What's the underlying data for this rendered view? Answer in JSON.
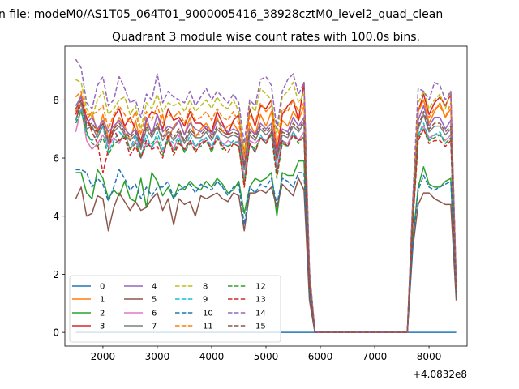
{
  "chart_data": {
    "type": "line",
    "suptitle": "n file: modeM0/AS1T05_064T01_9000005416_38928cztM0_level2_quad_clean",
    "title": "Quadrant 3 module wise count rates with 100.0s bins.",
    "xlabel": "",
    "ylabel": "",
    "offset_label": "+4.0832e8",
    "xlim": [
      1300,
      8700
    ],
    "ylim": [
      -0.47,
      9.85
    ],
    "xticks": [
      "2000",
      "3000",
      "4000",
      "5000",
      "6000",
      "7000",
      "8000"
    ],
    "yticks": [
      "0",
      "2",
      "4",
      "6",
      "8"
    ],
    "grid": false,
    "legend_placement": "lower-left",
    "x": [
      1500,
      1600,
      1700,
      1800,
      1900,
      2000,
      2100,
      2200,
      2300,
      2400,
      2500,
      2600,
      2700,
      2800,
      2900,
      3000,
      3100,
      3200,
      3300,
      3400,
      3500,
      3600,
      3700,
      3800,
      3900,
      4000,
      4100,
      4200,
      4300,
      4400,
      4500,
      4600,
      4700,
      4800,
      4900,
      5000,
      5100,
      5200,
      5300,
      5400,
      5500,
      5600,
      5700,
      5800,
      5900,
      7600,
      7700,
      7800,
      7900,
      8000,
      8100,
      8200,
      8300,
      8400,
      8500
    ],
    "series": [
      {
        "name": "0",
        "color": "#1f77b4",
        "dash": "solid",
        "values": [
          0,
          0,
          0,
          0,
          0,
          0,
          0,
          0,
          0,
          0,
          0,
          0,
          0,
          0,
          0,
          0,
          0,
          0,
          0,
          0,
          0,
          0,
          0,
          0,
          0,
          0,
          0,
          0,
          0,
          0,
          0,
          0,
          0,
          0,
          0,
          0,
          0,
          0,
          0,
          0,
          0,
          0,
          0,
          0,
          0,
          0,
          0,
          0,
          0,
          0,
          0,
          0,
          0,
          0,
          0
        ]
      },
      {
        "name": "1",
        "color": "#ff7f0e",
        "dash": "solid",
        "values": [
          7.6,
          8.2,
          7.3,
          7.6,
          6.8,
          7.5,
          6.7,
          7.0,
          7.4,
          7.1,
          6.6,
          7.3,
          6.5,
          7.2,
          6.9,
          7.0,
          7.5,
          6.6,
          7.1,
          7.3,
          6.8,
          7.4,
          6.7,
          7.0,
          7.2,
          6.9,
          7.4,
          6.9,
          7.1,
          7.2,
          6.9,
          5.7,
          7.2,
          6.8,
          7.5,
          7.1,
          7.6,
          6.2,
          7.3,
          7.1,
          7.6,
          7.3,
          7.8,
          1.9,
          0,
          0,
          4.2,
          7.6,
          8.0,
          7.2,
          7.6,
          7.9,
          7.4,
          7.7,
          1.6
        ]
      },
      {
        "name": "2",
        "color": "#2ca02c",
        "dash": "solid",
        "values": [
          5.5,
          5.5,
          4.8,
          4.6,
          5.6,
          5.3,
          4.6,
          4.9,
          4.7,
          5.2,
          4.6,
          4.5,
          5.3,
          4.3,
          5.5,
          5.2,
          4.7,
          5.0,
          4.6,
          5.1,
          4.9,
          5.2,
          5.0,
          4.9,
          5.2,
          5.0,
          5.3,
          5.1,
          4.8,
          4.9,
          5.2,
          4.1,
          5.0,
          5.3,
          5.2,
          5.3,
          5.5,
          4.0,
          5.5,
          5.4,
          5.4,
          5.9,
          5.9,
          1.2,
          0,
          0,
          3.2,
          5.0,
          5.7,
          5.1,
          5.0,
          5.0,
          5.2,
          5.3,
          1.3
        ]
      },
      {
        "name": "3",
        "color": "#d62728",
        "dash": "solid",
        "values": [
          7.3,
          7.9,
          7.4,
          7.0,
          6.9,
          7.2,
          6.5,
          7.4,
          7.7,
          7.1,
          7.4,
          7.0,
          6.6,
          7.3,
          7.6,
          7.5,
          7.0,
          7.7,
          7.3,
          7.4,
          7.1,
          7.6,
          7.2,
          7.2,
          7.0,
          6.9,
          7.6,
          7.2,
          6.8,
          7.3,
          7.5,
          6.1,
          7.7,
          7.1,
          7.8,
          7.7,
          8.0,
          6.2,
          7.5,
          7.8,
          8.0,
          7.3,
          8.6,
          2.1,
          0,
          0,
          4.5,
          7.6,
          8.2,
          7.5,
          7.9,
          8.1,
          7.8,
          8.2,
          1.7
        ]
      },
      {
        "name": "4",
        "color": "#9467bd",
        "dash": "solid",
        "values": [
          7.8,
          8.1,
          7.2,
          7.4,
          7.0,
          7.3,
          6.9,
          7.1,
          7.3,
          7.0,
          6.8,
          7.0,
          6.4,
          7.4,
          6.8,
          7.5,
          6.9,
          7.1,
          7.0,
          7.3,
          6.8,
          7.2,
          7.0,
          6.9,
          7.1,
          6.8,
          7.3,
          7.1,
          6.9,
          7.0,
          6.9,
          5.8,
          7.0,
          6.8,
          7.2,
          7.0,
          7.2,
          6.1,
          7.0,
          6.9,
          7.4,
          7.1,
          7.4,
          1.8,
          0,
          0,
          4.1,
          7.3,
          7.8,
          7.1,
          7.4,
          7.4,
          7.0,
          7.3,
          1.5
        ]
      },
      {
        "name": "5",
        "color": "#8c564b",
        "dash": "solid",
        "values": [
          4.6,
          5.0,
          4.0,
          4.1,
          4.7,
          4.6,
          3.5,
          4.3,
          4.8,
          4.5,
          4.2,
          4.5,
          4.2,
          4.3,
          4.6,
          4.8,
          4.2,
          4.6,
          3.7,
          4.6,
          4.4,
          4.5,
          4.0,
          4.7,
          4.6,
          4.7,
          4.8,
          4.6,
          4.5,
          4.8,
          4.7,
          3.5,
          4.8,
          4.8,
          4.9,
          4.8,
          5.0,
          4.3,
          5.1,
          4.9,
          4.7,
          5.3,
          4.9,
          1.1,
          0,
          0,
          2.9,
          4.4,
          4.8,
          4.8,
          4.6,
          4.5,
          4.4,
          4.4,
          1.1
        ]
      },
      {
        "name": "6",
        "color": "#e377c2",
        "dash": "solid",
        "values": [
          6.9,
          7.7,
          6.6,
          6.3,
          6.5,
          6.8,
          6.4,
          6.7,
          6.5,
          6.9,
          6.3,
          6.6,
          6.0,
          6.5,
          6.4,
          6.6,
          6.2,
          6.7,
          6.3,
          6.8,
          6.2,
          6.6,
          6.4,
          6.5,
          6.7,
          6.3,
          6.8,
          6.4,
          6.6,
          6.5,
          6.6,
          5.3,
          6.6,
          6.5,
          6.7,
          6.6,
          6.9,
          5.6,
          6.6,
          6.5,
          6.9,
          6.6,
          6.9,
          1.7,
          0,
          0,
          3.9,
          6.8,
          7.1,
          6.7,
          6.8,
          6.8,
          6.6,
          6.8,
          1.4
        ]
      },
      {
        "name": "7",
        "color": "#7f7f7f",
        "dash": "solid",
        "values": [
          7.5,
          7.9,
          7.0,
          7.1,
          6.7,
          7.1,
          6.5,
          6.9,
          7.1,
          6.8,
          6.6,
          6.8,
          6.3,
          7.0,
          6.7,
          7.1,
          6.6,
          6.9,
          6.6,
          6.9,
          6.5,
          6.9,
          6.7,
          6.7,
          6.9,
          6.6,
          7.0,
          6.8,
          6.7,
          6.8,
          6.7,
          5.6,
          6.8,
          6.6,
          7.0,
          6.8,
          7.0,
          5.9,
          6.8,
          6.7,
          7.1,
          6.9,
          7.2,
          1.8,
          0,
          0,
          4.0,
          7.0,
          7.5,
          6.9,
          7.1,
          7.1,
          6.8,
          7.0,
          1.5
        ]
      },
      {
        "name": "8",
        "color": "#bcbd22",
        "dash": "dashed",
        "values": [
          8.7,
          8.6,
          7.7,
          7.4,
          8.0,
          8.3,
          7.5,
          7.7,
          8.0,
          8.1,
          7.5,
          7.8,
          7.0,
          7.9,
          7.7,
          8.2,
          7.6,
          7.9,
          7.8,
          7.9,
          7.6,
          8.0,
          7.6,
          7.8,
          8.0,
          7.7,
          8.1,
          7.8,
          7.7,
          8.0,
          7.6,
          6.2,
          7.9,
          7.6,
          8.4,
          8.2,
          8.0,
          6.8,
          8.1,
          8.3,
          8.6,
          7.9,
          8.2,
          2.0,
          0,
          0,
          4.4,
          7.9,
          8.3,
          7.7,
          8.0,
          8.2,
          7.7,
          8.3,
          1.7
        ]
      },
      {
        "name": "9",
        "color": "#17becf",
        "dash": "dashed",
        "values": [
          7.3,
          7.7,
          6.8,
          6.6,
          6.8,
          7.1,
          6.2,
          6.6,
          6.9,
          6.7,
          6.3,
          6.8,
          6.0,
          6.8,
          6.3,
          6.9,
          6.3,
          6.7,
          6.5,
          6.7,
          6.2,
          6.8,
          6.4,
          6.6,
          6.7,
          6.4,
          6.8,
          6.5,
          6.4,
          6.6,
          6.5,
          5.2,
          6.5,
          6.2,
          6.8,
          6.5,
          6.9,
          5.5,
          6.6,
          6.4,
          6.9,
          6.6,
          6.7,
          1.6,
          0,
          0,
          3.8,
          6.8,
          7.2,
          6.6,
          6.8,
          6.9,
          6.5,
          6.7,
          1.4
        ]
      },
      {
        "name": "10",
        "color": "#1f77b4",
        "dash": "dashed",
        "values": [
          5.6,
          5.6,
          5.5,
          5.0,
          5.3,
          5.1,
          4.5,
          5.0,
          5.6,
          5.3,
          4.9,
          5.1,
          4.6,
          5.0,
          4.7,
          5.0,
          5.0,
          5.2,
          4.6,
          4.9,
          5.0,
          5.1,
          4.8,
          5.1,
          5.0,
          4.9,
          5.2,
          5.0,
          4.7,
          5.0,
          5.1,
          3.7,
          5.0,
          4.8,
          5.1,
          5.0,
          5.3,
          4.4,
          5.3,
          5.2,
          5.0,
          5.5,
          5.5,
          1.3,
          0,
          0,
          3.0,
          4.9,
          5.4,
          5.0,
          4.9,
          5.0,
          5.1,
          5.2,
          1.3
        ]
      },
      {
        "name": "11",
        "color": "#ff7f0e",
        "dash": "dashed",
        "values": [
          8.1,
          8.3,
          7.5,
          7.5,
          7.6,
          7.8,
          7.0,
          7.5,
          7.8,
          7.5,
          7.2,
          7.6,
          6.8,
          7.6,
          7.3,
          7.8,
          7.2,
          7.5,
          7.4,
          7.6,
          7.2,
          7.7,
          7.3,
          7.4,
          7.6,
          7.3,
          7.7,
          7.4,
          7.3,
          7.6,
          7.2,
          6.0,
          7.5,
          7.2,
          7.9,
          7.6,
          7.8,
          6.4,
          7.7,
          7.6,
          8.0,
          7.6,
          7.9,
          1.9,
          0,
          0,
          4.3,
          7.6,
          8.0,
          7.4,
          7.7,
          7.8,
          7.4,
          7.9,
          1.6
        ]
      },
      {
        "name": "12",
        "color": "#2ca02c",
        "dash": "dashed",
        "values": [
          7.2,
          7.6,
          6.9,
          6.5,
          6.4,
          6.7,
          6.1,
          6.5,
          6.6,
          6.8,
          6.3,
          6.5,
          6.1,
          6.4,
          6.5,
          6.7,
          6.1,
          6.6,
          6.2,
          6.6,
          6.2,
          6.5,
          6.3,
          6.4,
          6.6,
          6.2,
          6.7,
          6.3,
          6.4,
          6.5,
          6.4,
          5.1,
          6.5,
          6.3,
          6.7,
          6.5,
          6.8,
          5.3,
          6.5,
          6.4,
          6.8,
          6.5,
          6.8,
          1.6,
          0,
          0,
          3.8,
          6.7,
          7.0,
          6.6,
          6.7,
          6.8,
          6.5,
          6.7,
          1.4
        ]
      },
      {
        "name": "13",
        "color": "#d62728",
        "dash": "dashed",
        "values": [
          7.5,
          8.0,
          7.4,
          6.9,
          6.5,
          5.5,
          6.3,
          7.0,
          6.6,
          6.7,
          6.1,
          6.4,
          6.0,
          6.6,
          6.3,
          6.4,
          6.0,
          6.8,
          6.1,
          6.5,
          6.3,
          6.6,
          6.2,
          6.5,
          6.6,
          6.3,
          6.7,
          6.4,
          6.2,
          6.5,
          6.4,
          5.0,
          6.5,
          6.2,
          6.7,
          6.5,
          6.9,
          5.4,
          6.6,
          6.4,
          6.8,
          6.6,
          6.7,
          1.6,
          0,
          0,
          3.7,
          6.6,
          7.0,
          6.5,
          6.6,
          6.6,
          6.4,
          6.6,
          1.4
        ]
      },
      {
        "name": "14",
        "color": "#9467bd",
        "dash": "dashed",
        "values": [
          9.4,
          9.1,
          7.9,
          7.7,
          8.5,
          8.8,
          7.8,
          8.0,
          8.8,
          8.4,
          7.9,
          8.0,
          7.4,
          8.2,
          8.0,
          8.9,
          7.9,
          8.3,
          8.1,
          8.0,
          7.9,
          8.3,
          7.8,
          8.1,
          8.4,
          8.0,
          8.3,
          8.1,
          7.9,
          8.2,
          7.9,
          6.5,
          8.0,
          7.8,
          8.7,
          8.8,
          8.5,
          7.0,
          8.3,
          8.7,
          8.9,
          8.2,
          8.6,
          2.2,
          0,
          0,
          4.6,
          8.4,
          8.3,
          8.0,
          8.6,
          8.5,
          8.0,
          8.3,
          1.8
        ]
      },
      {
        "name": "15",
        "color": "#8c564b",
        "dash": "dashed",
        "values": [
          7.7,
          8.0,
          7.1,
          7.2,
          6.9,
          7.2,
          6.6,
          7.0,
          7.2,
          6.9,
          6.7,
          6.9,
          6.4,
          7.1,
          6.8,
          7.2,
          6.7,
          7.0,
          6.7,
          7.0,
          6.6,
          7.0,
          6.8,
          6.8,
          7.0,
          6.7,
          7.1,
          6.9,
          6.8,
          6.9,
          6.8,
          5.7,
          6.9,
          6.7,
          7.1,
          6.9,
          7.1,
          6.0,
          6.9,
          6.8,
          7.2,
          7.0,
          7.3,
          1.8,
          0,
          0,
          4.1,
          7.1,
          7.6,
          7.0,
          7.2,
          7.2,
          6.9,
          7.1,
          1.5
        ]
      }
    ]
  }
}
